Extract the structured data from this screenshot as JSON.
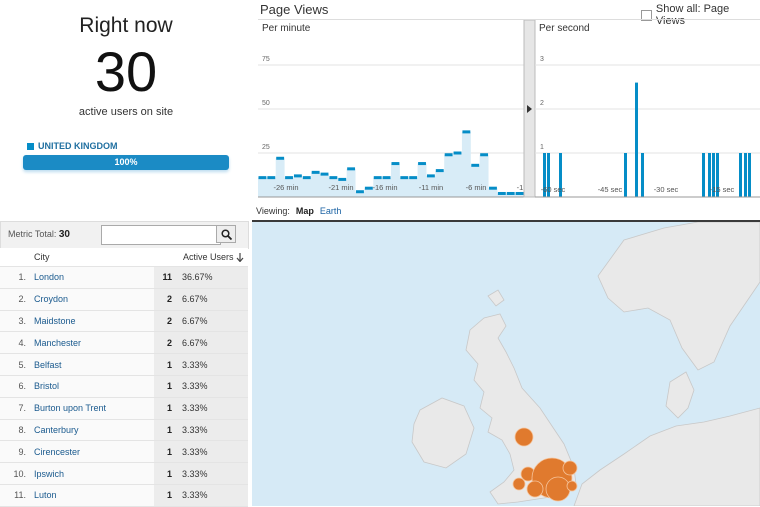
{
  "realtime": {
    "title": "Right now",
    "active_count": "30",
    "subtitle": "active users on site",
    "country": "UNITED KINGDOM",
    "country_share_label": "100%",
    "country_share": 1.0
  },
  "page_views": {
    "title": "Page Views",
    "show_all_label": "Show all: Page Views",
    "show_all_checked": false,
    "per_minute": {
      "label": "Per minute",
      "y_ticks": [
        "75",
        "50",
        "25"
      ],
      "x_ticks": [
        "-26 min",
        "-21 min",
        "-16 min",
        "-11 min",
        "-6 min",
        "-1"
      ],
      "values": [
        11,
        11,
        22,
        11,
        12,
        11,
        14,
        13,
        11,
        10,
        16,
        3,
        5,
        11,
        11,
        19,
        11,
        11,
        19,
        12,
        15,
        24,
        25,
        37,
        18,
        24,
        5,
        2,
        2,
        2
      ]
    },
    "per_second": {
      "label": "Per second",
      "y_ticks": [
        "3",
        "2",
        "1"
      ],
      "x_ticks": [
        "-60 sec",
        "-45 sec",
        "-30 sec",
        "-15 sec"
      ],
      "values": [
        1,
        1,
        1,
        1,
        2.6,
        1,
        1,
        1,
        1,
        1,
        1,
        1,
        1
      ]
    },
    "divider_icon": "chevron-right-icon"
  },
  "viewing": {
    "label": "Viewing:",
    "tabs": [
      "Map",
      "Earth"
    ],
    "active_tab": "Map"
  },
  "table": {
    "metric_total_label": "Metric Total:",
    "metric_total_value": "30",
    "search_placeholder": "",
    "search_icon": "search-icon",
    "columns": [
      "City",
      "Active Users"
    ],
    "sort_icon": "arrow-down-icon",
    "rows": [
      {
        "rank": "1.",
        "city": "London",
        "users": "11",
        "pct": "36.67%"
      },
      {
        "rank": "2.",
        "city": "Croydon",
        "users": "2",
        "pct": "6.67%"
      },
      {
        "rank": "3.",
        "city": "Maidstone",
        "users": "2",
        "pct": "6.67%"
      },
      {
        "rank": "4.",
        "city": "Manchester",
        "users": "2",
        "pct": "6.67%"
      },
      {
        "rank": "5.",
        "city": "Belfast",
        "users": "1",
        "pct": "3.33%"
      },
      {
        "rank": "6.",
        "city": "Bristol",
        "users": "1",
        "pct": "3.33%"
      },
      {
        "rank": "7.",
        "city": "Burton upon Trent",
        "users": "1",
        "pct": "3.33%"
      },
      {
        "rank": "8.",
        "city": "Canterbury",
        "users": "1",
        "pct": "3.33%"
      },
      {
        "rank": "9.",
        "city": "Cirencester",
        "users": "1",
        "pct": "3.33%"
      },
      {
        "rank": "10.",
        "city": "Ipswich",
        "users": "1",
        "pct": "3.33%"
      },
      {
        "rank": "11.",
        "city": "Luton",
        "users": "1",
        "pct": "3.33%"
      }
    ]
  },
  "colors": {
    "accent": "#058dc7",
    "bar": "#1b8bc5",
    "link": "#1a5a8e",
    "map_water": "#d6eaf6",
    "map_land": "#e8e8e8",
    "marker": "#e07a2e"
  }
}
